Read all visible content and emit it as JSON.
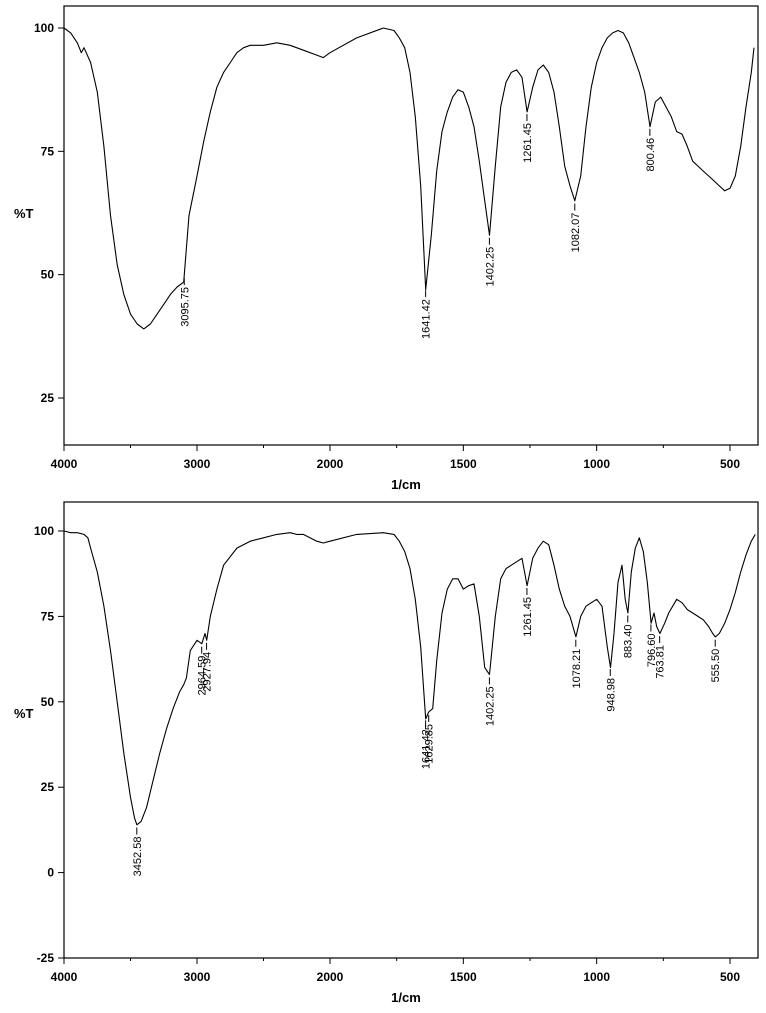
{
  "chart_data": [
    {
      "type": "line",
      "title": "",
      "xlabel": "1/cm",
      "ylabel": "%T",
      "xlim": [
        4000,
        400
      ],
      "ylim": [
        15,
        105
      ],
      "x_ticks": [
        4000,
        3000,
        2000,
        1500,
        1000,
        500
      ],
      "y_ticks": [
        100,
        75,
        50,
        25
      ],
      "grid": false,
      "series": [
        {
          "name": "",
          "x": [
            4000,
            3950,
            3900,
            3870,
            3850,
            3800,
            3750,
            3700,
            3650,
            3600,
            3550,
            3500,
            3450,
            3400,
            3350,
            3300,
            3250,
            3200,
            3150,
            3100,
            3060,
            3000,
            2950,
            2900,
            2850,
            2800,
            2750,
            2700,
            2650,
            2600,
            2500,
            2400,
            2300,
            2200,
            2100,
            2050,
            2000,
            1900,
            1800,
            1760,
            1740,
            1720,
            1700,
            1680,
            1660,
            1641,
            1620,
            1600,
            1580,
            1560,
            1540,
            1520,
            1500,
            1480,
            1460,
            1440,
            1420,
            1402,
            1380,
            1360,
            1340,
            1320,
            1300,
            1280,
            1261,
            1240,
            1220,
            1200,
            1180,
            1160,
            1140,
            1120,
            1100,
            1082,
            1060,
            1040,
            1020,
            1000,
            980,
            960,
            940,
            920,
            900,
            880,
            860,
            840,
            820,
            800,
            780,
            760,
            740,
            720,
            700,
            680,
            660,
            640,
            620,
            600,
            580,
            560,
            540,
            520,
            500,
            480,
            460,
            440,
            420,
            410
          ],
          "y": [
            100,
            99,
            97,
            95,
            96,
            93,
            87,
            76,
            62,
            52,
            46,
            42,
            40,
            39,
            40,
            42,
            44,
            46,
            47.5,
            48.5,
            62,
            70,
            77,
            83,
            88,
            91,
            93,
            95,
            96,
            96.5,
            96.5,
            97,
            96.5,
            95.5,
            94.5,
            94,
            95,
            98,
            100,
            99.5,
            98,
            96,
            91,
            82,
            68,
            47,
            58,
            71,
            79,
            83,
            86,
            87.5,
            87,
            84,
            80,
            73,
            65,
            58,
            72,
            84,
            89,
            91,
            91.5,
            90,
            83,
            88,
            91.5,
            92.5,
            91,
            87,
            80,
            72,
            68,
            65,
            70,
            80,
            88,
            93,
            96,
            98,
            99,
            99.5,
            99,
            97,
            94,
            91,
            87,
            80,
            85,
            86,
            84,
            82,
            79,
            78.5,
            76,
            73,
            72,
            71,
            70,
            69,
            68,
            67,
            67.5,
            70,
            76,
            84,
            91,
            96
          ]
        }
      ],
      "annotations": [
        {
          "x": 3095.75,
          "label": "3095.75"
        },
        {
          "x": 1641.42,
          "label": "1641.42"
        },
        {
          "x": 1402.25,
          "label": "1402.25"
        },
        {
          "x": 1261.45,
          "label": "1261.45"
        },
        {
          "x": 1082.07,
          "label": "1082.07"
        },
        {
          "x": 800.46,
          "label": "800.46"
        }
      ]
    },
    {
      "type": "line",
      "title": "",
      "xlabel": "1/cm",
      "ylabel": "%T",
      "xlim": [
        4000,
        400
      ],
      "ylim": [
        -25,
        105
      ],
      "x_ticks": [
        4000,
        3000,
        2000,
        1500,
        1000,
        500
      ],
      "y_ticks": [
        100,
        75,
        50,
        25,
        0,
        -25
      ],
      "grid": false,
      "series": [
        {
          "name": "",
          "x": [
            4000,
            3950,
            3900,
            3850,
            3820,
            3800,
            3750,
            3700,
            3650,
            3600,
            3550,
            3500,
            3470,
            3452,
            3420,
            3380,
            3330,
            3280,
            3230,
            3180,
            3130,
            3100,
            3080,
            3050,
            3000,
            2964,
            2940,
            2927,
            2900,
            2850,
            2800,
            2700,
            2600,
            2500,
            2400,
            2300,
            2250,
            2200,
            2100,
            2050,
            2000,
            1900,
            1800,
            1760,
            1740,
            1720,
            1700,
            1680,
            1660,
            1641,
            1630,
            1615,
            1600,
            1580,
            1560,
            1540,
            1520,
            1500,
            1480,
            1460,
            1440,
            1420,
            1402,
            1380,
            1360,
            1340,
            1320,
            1300,
            1280,
            1261,
            1240,
            1220,
            1200,
            1180,
            1160,
            1140,
            1120,
            1100,
            1078,
            1060,
            1040,
            1020,
            1000,
            980,
            960,
            948,
            935,
            920,
            905,
            893,
            883,
            870,
            855,
            840,
            825,
            810,
            796,
            785,
            775,
            763,
            745,
            730,
            715,
            700,
            680,
            660,
            640,
            620,
            600,
            580,
            565,
            555,
            540,
            520,
            500,
            480,
            460,
            440,
            420,
            405
          ],
          "y": [
            100,
            99.5,
            99.5,
            99,
            98,
            95,
            88,
            78,
            65,
            50,
            35,
            22,
            16,
            14,
            15,
            19,
            27,
            35,
            42,
            48,
            53,
            55,
            57,
            65,
            68,
            67,
            70,
            68,
            75,
            83,
            90,
            95,
            97,
            98,
            99,
            99.5,
            99,
            99,
            97,
            96.5,
            97,
            99,
            99.5,
            99,
            97,
            94,
            89,
            80,
            66,
            45,
            47,
            48,
            62,
            76,
            83,
            86,
            86,
            83,
            84,
            84.5,
            75,
            60,
            58,
            75,
            86,
            89,
            90,
            91,
            92,
            84,
            92,
            95,
            97,
            96,
            90,
            83,
            78,
            75,
            69,
            75,
            78,
            79,
            80,
            78,
            66,
            60,
            70,
            85,
            90,
            80,
            76,
            88,
            95,
            98,
            94,
            85,
            73,
            76,
            72,
            70,
            73,
            76,
            78,
            80,
            79,
            77,
            76,
            75,
            74,
            72,
            70,
            69,
            70,
            73,
            77,
            82,
            88,
            93,
            97,
            99
          ]
        }
      ],
      "annotations": [
        {
          "x": 3452.58,
          "label": "3452.58"
        },
        {
          "x": 2964.59,
          "label": "2964.59"
        },
        {
          "x": 2927.94,
          "label": "2927.94"
        },
        {
          "x": 1641.42,
          "label": "1641.42"
        },
        {
          "x": 1629.85,
          "label": "1629.85"
        },
        {
          "x": 1402.25,
          "label": "1402.25"
        },
        {
          "x": 1261.45,
          "label": "1261.45"
        },
        {
          "x": 1078.21,
          "label": "1078.21"
        },
        {
          "x": 948.98,
          "label": "948.98"
        },
        {
          "x": 883.4,
          "label": "883.40"
        },
        {
          "x": 796.6,
          "label": "796.60"
        },
        {
          "x": 763.81,
          "label": "763.81"
        },
        {
          "x": 555.5,
          "label": "555.50"
        }
      ]
    }
  ]
}
